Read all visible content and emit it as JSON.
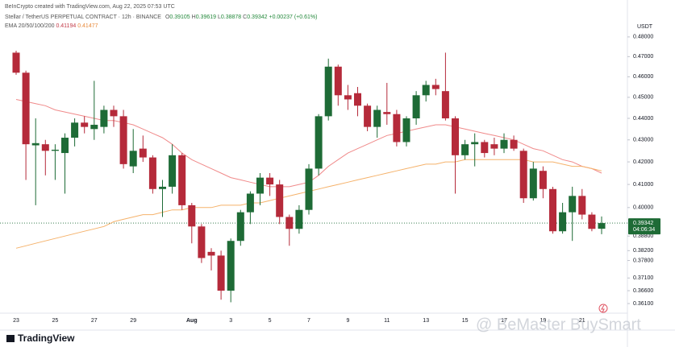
{
  "header": "BeInCrypto created with TradingView.com, Aug 22, 2025 07:53 UTC",
  "legend": {
    "symbol": "Stellar / TetherUS PERPETUAL CONTRACT · 12h · BINANCE",
    "ohlc": [
      {
        "label": "O",
        "value": "0.39105"
      },
      {
        "label": "H",
        "value": "0.39619"
      },
      {
        "label": "L",
        "value": "0.38878"
      },
      {
        "label": "C",
        "value": "0.39342"
      }
    ],
    "change": "+0.00237 (+0.61%)",
    "ema_label": "EMA 20/50/100/200",
    "ema_values": [
      "0.41194",
      "0.41477"
    ]
  },
  "brand": "TradingView",
  "watermark": "@ BeMaster BuySmart",
  "chart_data": {
    "type": "candlestick",
    "currency": "USDT",
    "log_scale": true,
    "grid": false,
    "up_color": "#1e6b36",
    "down_color": "#b52a3a",
    "categories": [
      "23",
      null,
      null,
      null,
      "25",
      null,
      null,
      null,
      "27",
      null,
      null,
      null,
      "29",
      null,
      null,
      null,
      null,
      null,
      "Aug",
      null,
      null,
      null,
      "3",
      null,
      null,
      null,
      "5",
      null,
      null,
      null,
      "7",
      null,
      null,
      null,
      "9",
      null,
      null,
      null,
      "11",
      null,
      null,
      null,
      "13",
      null,
      null,
      null,
      "15",
      null,
      null,
      null,
      "17",
      null,
      null,
      null,
      "19",
      null,
      null,
      null,
      "21",
      null,
      null
    ],
    "open": [
      0.472,
      0.462,
      0.4275,
      0.428,
      0.425,
      0.424,
      0.431,
      0.438,
      0.435,
      0.436,
      0.444,
      0.441,
      0.418,
      0.426,
      0.422,
      0.408,
      0.409,
      0.423,
      0.401,
      0.392,
      0.3815,
      0.38,
      0.366,
      0.386,
      0.398,
      0.406,
      0.413,
      0.41,
      0.396,
      0.391,
      0.399,
      0.417,
      0.441,
      0.465,
      0.451,
      0.452,
      0.446,
      0.436,
      0.443,
      0.442,
      0.429,
      0.44,
      0.451,
      0.456,
      0.453,
      0.44,
      0.423,
      0.428,
      0.429,
      0.428,
      0.426,
      0.43,
      0.425,
      0.404,
      0.416,
      0.408,
      0.39,
      0.398,
      0.405,
      0.397,
      0.39105
    ],
    "high": [
      0.473,
      0.463,
      0.44,
      0.43,
      0.428,
      0.433,
      0.44,
      0.441,
      0.458,
      0.446,
      0.446,
      0.444,
      0.435,
      0.432,
      0.423,
      0.412,
      0.428,
      0.424,
      0.402,
      0.393,
      0.383,
      0.382,
      0.387,
      0.399,
      0.407,
      0.415,
      0.415,
      0.412,
      0.397,
      0.401,
      0.419,
      0.442,
      0.469,
      0.466,
      0.456,
      0.455,
      0.447,
      0.446,
      0.457,
      0.444,
      0.441,
      0.453,
      0.458,
      0.459,
      0.472,
      0.441,
      0.43,
      0.433,
      0.43,
      0.431,
      0.433,
      0.432,
      0.426,
      0.42,
      0.418,
      0.409,
      0.402,
      0.409,
      0.408,
      0.398,
      0.39619
    ],
    "low": [
      0.461,
      0.412,
      0.401,
      0.414,
      0.412,
      0.406,
      0.427,
      0.433,
      0.43,
      0.433,
      0.436,
      0.417,
      0.415,
      0.42,
      0.406,
      0.396,
      0.406,
      0.399,
      0.385,
      0.377,
      0.374,
      0.3625,
      0.3615,
      0.384,
      0.393,
      0.401,
      0.405,
      0.393,
      0.384,
      0.389,
      0.397,
      0.414,
      0.439,
      0.446,
      0.444,
      0.441,
      0.434,
      0.431,
      0.437,
      0.427,
      0.427,
      0.437,
      0.448,
      0.451,
      0.439,
      0.406,
      0.421,
      0.418,
      0.422,
      0.423,
      0.424,
      0.425,
      0.402,
      0.403,
      0.404,
      0.389,
      0.389,
      0.386,
      0.395,
      0.39,
      0.38878
    ],
    "close": [
      0.462,
      0.428,
      0.4285,
      0.425,
      0.4255,
      0.431,
      0.438,
      0.436,
      0.437,
      0.444,
      0.441,
      0.419,
      0.425,
      0.422,
      0.408,
      0.409,
      0.423,
      0.401,
      0.392,
      0.379,
      0.38,
      0.366,
      0.386,
      0.398,
      0.406,
      0.413,
      0.41,
      0.396,
      0.391,
      0.399,
      0.417,
      0.441,
      0.465,
      0.451,
      0.449,
      0.446,
      0.436,
      0.444,
      0.442,
      0.429,
      0.44,
      0.451,
      0.456,
      0.454,
      0.44,
      0.423,
      0.428,
      0.429,
      0.424,
      0.426,
      0.43,
      0.426,
      0.404,
      0.417,
      0.408,
      0.39,
      0.398,
      0.405,
      0.397,
      0.391,
      0.39342
    ],
    "lines": [
      {
        "color": "#f08a8a",
        "values": [
          0.449,
          0.448,
          0.447,
          0.446,
          0.444,
          0.443,
          0.442,
          0.441,
          0.44,
          0.439,
          0.439,
          0.438,
          0.437,
          0.435,
          0.433,
          0.431,
          0.428,
          0.424,
          0.421,
          0.419,
          0.417,
          0.415,
          0.413,
          0.412,
          0.411,
          0.41,
          0.409,
          0.409,
          0.409,
          0.41,
          0.411,
          0.414,
          0.418,
          0.421,
          0.424,
          0.426,
          0.428,
          0.43,
          0.432,
          0.433,
          0.434,
          0.435,
          0.436,
          0.437,
          0.437,
          0.436,
          0.435,
          0.434,
          0.433,
          0.432,
          0.431,
          0.43,
          0.428,
          0.426,
          0.425,
          0.423,
          0.421,
          0.42,
          0.418,
          0.417,
          0.415
        ]
      },
      {
        "color": "#f5b26b",
        "values": [
          0.383,
          0.384,
          0.385,
          0.386,
          0.387,
          0.388,
          0.389,
          0.39,
          0.391,
          0.392,
          0.394,
          0.395,
          0.396,
          0.397,
          0.397,
          0.398,
          0.399,
          0.399,
          0.4,
          0.4,
          0.4,
          0.401,
          0.401,
          0.401,
          0.402,
          0.402,
          0.403,
          0.404,
          0.405,
          0.406,
          0.407,
          0.408,
          0.409,
          0.41,
          0.411,
          0.412,
          0.413,
          0.414,
          0.415,
          0.416,
          0.417,
          0.418,
          0.419,
          0.419,
          0.42,
          0.42,
          0.421,
          0.421,
          0.421,
          0.421,
          0.421,
          0.421,
          0.421,
          0.42,
          0.42,
          0.42,
          0.419,
          0.418,
          0.418,
          0.417,
          0.416
        ]
      }
    ],
    "ylim": [
      0.357,
      0.4866
    ],
    "yticks": [
      {
        "value": 0.48,
        "label": "0.48000"
      },
      {
        "value": 0.47,
        "label": "0.47000"
      },
      {
        "value": 0.46,
        "label": "0.46000"
      },
      {
        "value": 0.45,
        "label": "0.45000"
      },
      {
        "value": 0.44,
        "label": "0.44000"
      },
      {
        "value": 0.43,
        "label": "0.43000"
      },
      {
        "value": 0.42,
        "label": "0.42000"
      },
      {
        "value": 0.41,
        "label": "0.41000"
      },
      {
        "value": 0.4,
        "label": "0.40000"
      },
      {
        "value": 0.388,
        "label": "0.38800"
      },
      {
        "value": 0.382,
        "label": "0.38200"
      },
      {
        "value": 0.378,
        "label": "0.37800"
      },
      {
        "value": 0.371,
        "label": "0.37100"
      },
      {
        "value": 0.366,
        "label": "0.36600"
      },
      {
        "value": 0.361,
        "label": "0.36100"
      }
    ],
    "last_price": {
      "value": 0.39342,
      "label": "0.39342",
      "countdown": "04:06:34"
    }
  }
}
